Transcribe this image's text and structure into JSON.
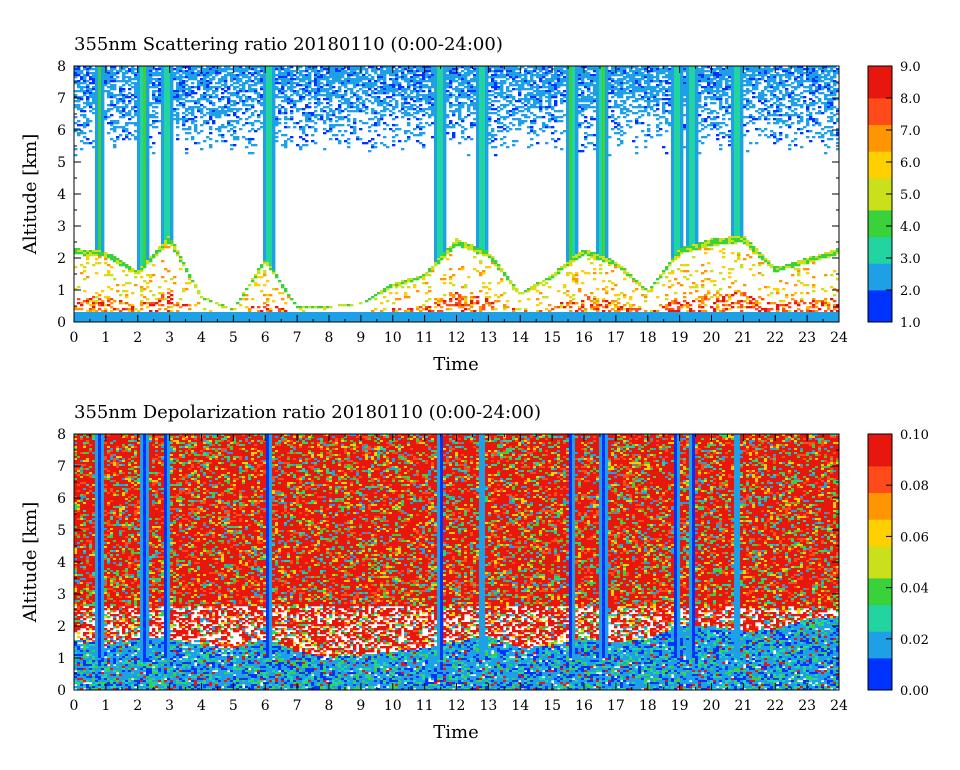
{
  "chart_data": [
    {
      "type": "heatmap",
      "title": "355nm Scattering ratio  20180110 (0:00-24:00)",
      "xlabel": "Time",
      "ylabel": "Altitude [km]",
      "xlim": [
        0,
        24
      ],
      "ylim": [
        0,
        8
      ],
      "x_ticks": [
        "0",
        "1",
        "2",
        "3",
        "4",
        "5",
        "6",
        "7",
        "8",
        "9",
        "10",
        "11",
        "12",
        "13",
        "14",
        "15",
        "16",
        "17",
        "18",
        "19",
        "20",
        "21",
        "22",
        "23",
        "24"
      ],
      "y_ticks": [
        "0",
        "1",
        "2",
        "3",
        "4",
        "5",
        "6",
        "7",
        "8"
      ],
      "colorbar": {
        "range": [
          1.0,
          9.0
        ],
        "ticks": [
          "9.0",
          "8.0",
          "7.0",
          "6.0",
          "5.0",
          "4.0",
          "3.0",
          "2.0",
          "1.0"
        ],
        "colors": [
          "#0033ff",
          "#1ea0e6",
          "#22d4a0",
          "#3ad13a",
          "#c9e01a",
          "#ffd000",
          "#ff9500",
          "#ff4a1a",
          "#e8170e"
        ]
      },
      "features": {
        "boundary_layer_top_km": [
          2.3,
          2.2,
          1.6,
          2.7,
          0.8,
          0.4,
          2.0,
          0.5,
          0.5,
          0.6,
          1.2,
          1.5,
          2.6,
          2.2,
          0.9,
          1.5,
          2.3,
          1.9,
          1.0,
          2.3,
          2.6,
          2.7,
          1.7,
          2.0,
          2.3
        ],
        "vertical_structures_hours": [
          0.8,
          2.2,
          2.9,
          6.1,
          11.5,
          12.8,
          15.6,
          16.6,
          18.9,
          19.4,
          20.8
        ]
      }
    },
    {
      "type": "heatmap",
      "title": "355nm Depolarization ratio  20180110 (0:00-24:00)",
      "xlabel": "Time",
      "ylabel": "Altitude [km]",
      "xlim": [
        0,
        24
      ],
      "ylim": [
        0,
        8
      ],
      "x_ticks": [
        "0",
        "1",
        "2",
        "3",
        "4",
        "5",
        "6",
        "7",
        "8",
        "9",
        "10",
        "11",
        "12",
        "13",
        "14",
        "15",
        "16",
        "17",
        "18",
        "19",
        "20",
        "21",
        "22",
        "23",
        "24"
      ],
      "y_ticks": [
        "0",
        "1",
        "2",
        "3",
        "4",
        "5",
        "6",
        "7",
        "8"
      ],
      "colorbar": {
        "range": [
          0.0,
          0.1
        ],
        "ticks": [
          "0.10",
          "0.08",
          "0.06",
          "0.04",
          "0.02",
          "0.00"
        ],
        "colors": [
          "#0033ff",
          "#1ea0e6",
          "#22d4a0",
          "#3ad13a",
          "#c9e01a",
          "#ffd000",
          "#ff9500",
          "#ff4a1a",
          "#e8170e"
        ]
      },
      "features": {
        "low_depol_layer_top_km": [
          1.6,
          1.4,
          1.6,
          1.6,
          1.4,
          1.3,
          1.6,
          1.2,
          1.0,
          1.1,
          1.2,
          1.3,
          1.5,
          1.7,
          1.3,
          1.4,
          1.6,
          1.5,
          1.6,
          2.0,
          2.0,
          1.8,
          1.9,
          2.2,
          2.3
        ],
        "vertical_structures_hours": [
          0.8,
          2.2,
          2.9,
          6.1,
          11.5,
          12.8,
          15.6,
          16.6,
          18.9,
          19.4,
          20.8
        ]
      }
    }
  ]
}
